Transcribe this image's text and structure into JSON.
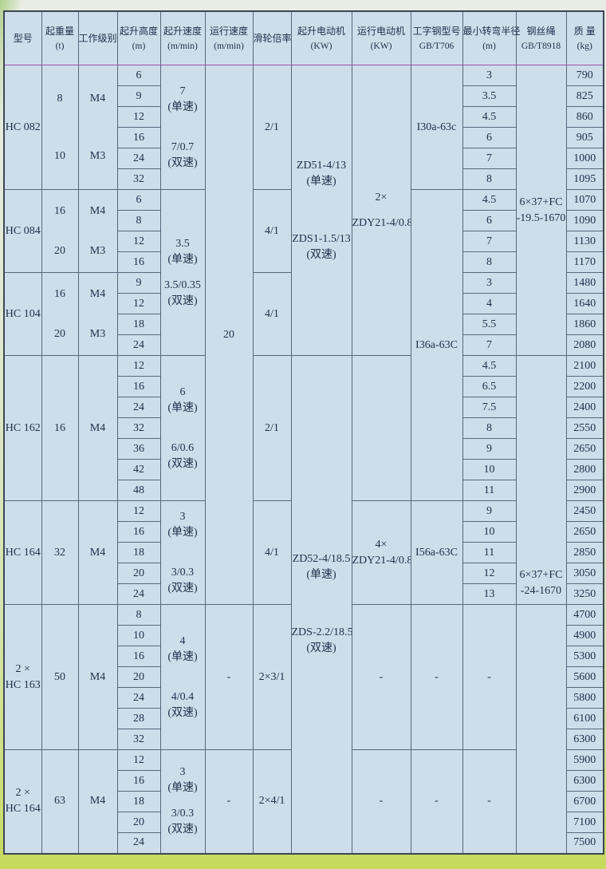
{
  "colors": {
    "table_bg": "#cddeea",
    "grid_line": "#5a667c",
    "ink": "#22304c",
    "frame_green": "#a6cc7a",
    "frame_yellow": "#c9dc66",
    "header_underline": "#9b4fae",
    "row_line_palette": [
      "#b05a9a",
      "#3fa3b5",
      "#8455b2",
      "#b5566d",
      "#3f7fb5",
      "#2f9f8a"
    ]
  },
  "header": {
    "columns": [
      {
        "label": "型号",
        "sub": ""
      },
      {
        "label": "起重量",
        "sub": "(t)"
      },
      {
        "label": "工作级别",
        "sub": ""
      },
      {
        "label": "起升高度",
        "sub": "(m)"
      },
      {
        "label": "起升速度",
        "sub": "(m/min)"
      },
      {
        "label": "运行速度",
        "sub": "(m/min)"
      },
      {
        "label": "滑轮倍率",
        "sub": ""
      },
      {
        "label": "起升电动机",
        "sub": "(KW)"
      },
      {
        "label": "运行电动机",
        "sub": "(KW)"
      },
      {
        "label": "工字钢型号",
        "sub": "GB/T706"
      },
      {
        "label": "最小转弯半径",
        "sub": "(m)"
      },
      {
        "label": "钢丝绳",
        "sub": "GB/T8918"
      },
      {
        "label": "质 量",
        "sub": "(kg)"
      }
    ]
  },
  "grid": {
    "rows": 38,
    "cells": [
      {
        "r": 1,
        "c": 1,
        "rs": 6,
        "t": [
          "HC 082"
        ]
      },
      {
        "r": 1,
        "c": 2,
        "rs": 6,
        "t": [
          "8",
          "",
          "10"
        ],
        "g": "gl"
      },
      {
        "r": 1,
        "c": 3,
        "rs": 6,
        "t": [
          "M4",
          "",
          "M3"
        ],
        "g": "gl"
      },
      {
        "r": 1,
        "c": 4,
        "t": [
          "6"
        ]
      },
      {
        "r": 1,
        "c": 5,
        "rs": 6,
        "t": [
          "7",
          "(单速)",
          "",
          "7/0.7",
          "(双速)"
        ],
        "g": "gm"
      },
      {
        "r": 1,
        "c": 6,
        "rs": 26,
        "t": [
          "20"
        ]
      },
      {
        "r": 1,
        "c": 7,
        "rs": 6,
        "t": [
          "2/1"
        ]
      },
      {
        "r": 1,
        "c": 8,
        "rs": 14,
        "t": [
          "ZD51-4/13",
          "(单速)",
          "",
          "ZDS1-1.5/13",
          "(双速)"
        ],
        "g": "gl"
      },
      {
        "r": 1,
        "c": 9,
        "rs": 14,
        "t": [
          "2×",
          "",
          "ZDY21-4/0.8"
        ],
        "g": "gs"
      },
      {
        "r": 1,
        "c": 10,
        "rs": 6,
        "t": [
          "I30a-63c"
        ]
      },
      {
        "r": 1,
        "c": 11,
        "t": [
          "3"
        ]
      },
      {
        "r": 1,
        "c": 12,
        "rs": 14,
        "t": [
          "6×37+FC",
          "-19.5-1670"
        ]
      },
      {
        "r": 1,
        "c": 13,
        "t": [
          "790"
        ]
      },
      {
        "r": 2,
        "c": 4,
        "t": [
          "9"
        ]
      },
      {
        "r": 2,
        "c": 11,
        "t": [
          "3.5"
        ]
      },
      {
        "r": 2,
        "c": 13,
        "t": [
          "825"
        ]
      },
      {
        "r": 3,
        "c": 4,
        "t": [
          "12"
        ]
      },
      {
        "r": 3,
        "c": 11,
        "t": [
          "4.5"
        ]
      },
      {
        "r": 3,
        "c": 13,
        "t": [
          "860"
        ]
      },
      {
        "r": 4,
        "c": 4,
        "t": [
          "16"
        ]
      },
      {
        "r": 4,
        "c": 11,
        "t": [
          "6"
        ]
      },
      {
        "r": 4,
        "c": 13,
        "t": [
          "905"
        ]
      },
      {
        "r": 5,
        "c": 4,
        "t": [
          "24"
        ]
      },
      {
        "r": 5,
        "c": 11,
        "t": [
          "7"
        ]
      },
      {
        "r": 5,
        "c": 13,
        "t": [
          "1000"
        ]
      },
      {
        "r": 6,
        "c": 4,
        "t": [
          "32"
        ]
      },
      {
        "r": 6,
        "c": 11,
        "t": [
          "8"
        ]
      },
      {
        "r": 6,
        "c": 13,
        "t": [
          "1095"
        ]
      },
      {
        "r": 7,
        "c": 1,
        "rs": 4,
        "t": [
          "HC 084"
        ]
      },
      {
        "r": 7,
        "c": 2,
        "rs": 4,
        "t": [
          "16",
          "",
          "20"
        ],
        "g": "gm"
      },
      {
        "r": 7,
        "c": 3,
        "rs": 4,
        "t": [
          "M4",
          "",
          "M3"
        ],
        "g": "gm"
      },
      {
        "r": 7,
        "c": 4,
        "t": [
          "6"
        ]
      },
      {
        "r": 7,
        "c": 5,
        "rs": 8,
        "t": [
          "3.5",
          "(单速)",
          "",
          "3.5/0.35",
          "(双速)"
        ],
        "g": "gs"
      },
      {
        "r": 7,
        "c": 7,
        "rs": 4,
        "t": [
          "4/1"
        ]
      },
      {
        "r": 7,
        "c": 10,
        "rs": 15,
        "t": [
          "I36a-63C"
        ]
      },
      {
        "r": 7,
        "c": 11,
        "t": [
          "4.5"
        ]
      },
      {
        "r": 7,
        "c": 13,
        "t": [
          "1070"
        ]
      },
      {
        "r": 8,
        "c": 4,
        "t": [
          "8"
        ]
      },
      {
        "r": 8,
        "c": 11,
        "t": [
          "6"
        ]
      },
      {
        "r": 8,
        "c": 13,
        "t": [
          "1090"
        ]
      },
      {
        "r": 9,
        "c": 4,
        "t": [
          "12"
        ]
      },
      {
        "r": 9,
        "c": 11,
        "t": [
          "7"
        ]
      },
      {
        "r": 9,
        "c": 13,
        "t": [
          "1130"
        ]
      },
      {
        "r": 10,
        "c": 4,
        "t": [
          "16"
        ]
      },
      {
        "r": 10,
        "c": 11,
        "t": [
          "8"
        ]
      },
      {
        "r": 10,
        "c": 13,
        "t": [
          "1170"
        ]
      },
      {
        "r": 11,
        "c": 1,
        "rs": 4,
        "t": [
          "HC 104"
        ]
      },
      {
        "r": 11,
        "c": 2,
        "rs": 4,
        "t": [
          "16",
          "",
          "20"
        ],
        "g": "gm"
      },
      {
        "r": 11,
        "c": 3,
        "rs": 4,
        "t": [
          "M4",
          "",
          "M3"
        ],
        "g": "gm"
      },
      {
        "r": 11,
        "c": 4,
        "t": [
          "9"
        ]
      },
      {
        "r": 11,
        "c": 7,
        "rs": 4,
        "t": [
          "4/1"
        ]
      },
      {
        "r": 11,
        "c": 11,
        "t": [
          "3"
        ]
      },
      {
        "r": 11,
        "c": 13,
        "t": [
          "1480"
        ]
      },
      {
        "r": 12,
        "c": 4,
        "t": [
          "12"
        ]
      },
      {
        "r": 12,
        "c": 11,
        "t": [
          "4"
        ]
      },
      {
        "r": 12,
        "c": 13,
        "t": [
          "1640"
        ]
      },
      {
        "r": 13,
        "c": 4,
        "t": [
          "18"
        ]
      },
      {
        "r": 13,
        "c": 11,
        "t": [
          "5.5"
        ]
      },
      {
        "r": 13,
        "c": 13,
        "t": [
          "1860"
        ]
      },
      {
        "r": 14,
        "c": 4,
        "t": [
          "24"
        ]
      },
      {
        "r": 14,
        "c": 11,
        "t": [
          "7"
        ]
      },
      {
        "r": 14,
        "c": 13,
        "t": [
          "2080"
        ]
      },
      {
        "r": 15,
        "c": 1,
        "rs": 7,
        "t": [
          "HC 162"
        ]
      },
      {
        "r": 15,
        "c": 2,
        "rs": 7,
        "t": [
          "16"
        ]
      },
      {
        "r": 15,
        "c": 3,
        "rs": 7,
        "t": [
          "M4"
        ]
      },
      {
        "r": 15,
        "c": 4,
        "t": [
          "12"
        ]
      },
      {
        "r": 15,
        "c": 5,
        "rs": 7,
        "t": [
          "6",
          "(单速)",
          "",
          "6/0.6",
          "(双速)"
        ],
        "g": "gm"
      },
      {
        "r": 15,
        "c": 7,
        "rs": 7,
        "t": [
          "2/1"
        ]
      },
      {
        "r": 15,
        "c": 8,
        "rs": 24,
        "t": [
          "ZD52-4/18.5",
          "(单速)",
          "",
          "ZDS-2.2/18.5",
          "(双速)"
        ],
        "g": "gl"
      },
      {
        "r": 15,
        "c": 9,
        "rs": 7,
        "t": [
          ""
        ]
      },
      {
        "r": 15,
        "c": 11,
        "t": [
          "4.5"
        ]
      },
      {
        "r": 15,
        "c": 12,
        "rs": 12,
        "t": [
          "6×37+FC",
          "-24-1670"
        ],
        "g": "vb"
      },
      {
        "r": 15,
        "c": 13,
        "t": [
          "2100"
        ]
      },
      {
        "r": 16,
        "c": 4,
        "t": [
          "16"
        ]
      },
      {
        "r": 16,
        "c": 11,
        "t": [
          "6.5"
        ]
      },
      {
        "r": 16,
        "c": 13,
        "t": [
          "2200"
        ]
      },
      {
        "r": 17,
        "c": 4,
        "t": [
          "24"
        ]
      },
      {
        "r": 17,
        "c": 11,
        "t": [
          "7.5"
        ]
      },
      {
        "r": 17,
        "c": 13,
        "t": [
          "2400"
        ]
      },
      {
        "r": 18,
        "c": 4,
        "t": [
          "32"
        ]
      },
      {
        "r": 18,
        "c": 11,
        "t": [
          "8"
        ]
      },
      {
        "r": 18,
        "c": 13,
        "t": [
          "2550"
        ]
      },
      {
        "r": 19,
        "c": 4,
        "t": [
          "36"
        ]
      },
      {
        "r": 19,
        "c": 11,
        "t": [
          "9"
        ]
      },
      {
        "r": 19,
        "c": 13,
        "t": [
          "2650"
        ]
      },
      {
        "r": 20,
        "c": 4,
        "t": [
          "42"
        ]
      },
      {
        "r": 20,
        "c": 11,
        "t": [
          "10"
        ]
      },
      {
        "r": 20,
        "c": 13,
        "t": [
          "2800"
        ]
      },
      {
        "r": 21,
        "c": 4,
        "t": [
          "48"
        ]
      },
      {
        "r": 21,
        "c": 11,
        "t": [
          "11"
        ]
      },
      {
        "r": 21,
        "c": 13,
        "t": [
          "2900"
        ]
      },
      {
        "r": 22,
        "c": 1,
        "rs": 5,
        "t": [
          "HC 164"
        ]
      },
      {
        "r": 22,
        "c": 2,
        "rs": 5,
        "t": [
          "32"
        ]
      },
      {
        "r": 22,
        "c": 3,
        "rs": 5,
        "t": [
          "M4"
        ]
      },
      {
        "r": 22,
        "c": 4,
        "t": [
          "12"
        ]
      },
      {
        "r": 22,
        "c": 5,
        "rs": 5,
        "t": [
          "3",
          "(单速)",
          "",
          "3/0.3",
          "(双速)"
        ],
        "g": "gm"
      },
      {
        "r": 22,
        "c": 7,
        "rs": 5,
        "t": [
          "4/1"
        ]
      },
      {
        "r": 22,
        "c": 9,
        "rs": 5,
        "t": [
          "4×",
          "ZDY21-4/0.8"
        ]
      },
      {
        "r": 22,
        "c": 10,
        "rs": 5,
        "t": [
          "I56a-63C"
        ]
      },
      {
        "r": 22,
        "c": 11,
        "t": [
          "9"
        ]
      },
      {
        "r": 22,
        "c": 13,
        "t": [
          "2450"
        ]
      },
      {
        "r": 23,
        "c": 4,
        "t": [
          "16"
        ]
      },
      {
        "r": 23,
        "c": 11,
        "t": [
          "10"
        ]
      },
      {
        "r": 23,
        "c": 13,
        "t": [
          "2650"
        ]
      },
      {
        "r": 24,
        "c": 4,
        "t": [
          "18"
        ]
      },
      {
        "r": 24,
        "c": 11,
        "t": [
          "11"
        ]
      },
      {
        "r": 24,
        "c": 13,
        "t": [
          "2850"
        ]
      },
      {
        "r": 25,
        "c": 4,
        "t": [
          "20"
        ]
      },
      {
        "r": 25,
        "c": 11,
        "t": [
          "12"
        ]
      },
      {
        "r": 25,
        "c": 13,
        "t": [
          "3050"
        ]
      },
      {
        "r": 26,
        "c": 4,
        "t": [
          "24"
        ]
      },
      {
        "r": 26,
        "c": 11,
        "t": [
          "13"
        ]
      },
      {
        "r": 26,
        "c": 13,
        "t": [
          "3250"
        ]
      },
      {
        "r": 27,
        "c": 1,
        "rs": 7,
        "t": [
          "2 ×",
          "HC 163"
        ]
      },
      {
        "r": 27,
        "c": 2,
        "rs": 7,
        "t": [
          "50"
        ]
      },
      {
        "r": 27,
        "c": 3,
        "rs": 7,
        "t": [
          "M4"
        ]
      },
      {
        "r": 27,
        "c": 4,
        "t": [
          "8"
        ]
      },
      {
        "r": 27,
        "c": 5,
        "rs": 7,
        "t": [
          "4",
          "(单速)",
          "",
          "4/0.4",
          "(双速)"
        ],
        "g": "gm"
      },
      {
        "r": 27,
        "c": 6,
        "rs": 7,
        "t": [
          "-"
        ]
      },
      {
        "r": 27,
        "c": 7,
        "rs": 7,
        "t": [
          "2×3/1"
        ]
      },
      {
        "r": 27,
        "c": 9,
        "rs": 7,
        "t": [
          "-"
        ]
      },
      {
        "r": 27,
        "c": 10,
        "rs": 7,
        "t": [
          "-"
        ]
      },
      {
        "r": 27,
        "c": 11,
        "rs": 7,
        "t": [
          "-"
        ]
      },
      {
        "r": 27,
        "c": 12,
        "rs": 12,
        "t": [
          ""
        ]
      },
      {
        "r": 27,
        "c": 13,
        "t": [
          "4700"
        ]
      },
      {
        "r": 28,
        "c": 4,
        "t": [
          "10"
        ]
      },
      {
        "r": 28,
        "c": 13,
        "t": [
          "4900"
        ]
      },
      {
        "r": 29,
        "c": 4,
        "t": [
          "16"
        ]
      },
      {
        "r": 29,
        "c": 13,
        "t": [
          "5300"
        ]
      },
      {
        "r": 30,
        "c": 4,
        "t": [
          "20"
        ]
      },
      {
        "r": 30,
        "c": 13,
        "t": [
          "5600"
        ]
      },
      {
        "r": 31,
        "c": 4,
        "t": [
          "24"
        ]
      },
      {
        "r": 31,
        "c": 13,
        "t": [
          "5800"
        ]
      },
      {
        "r": 32,
        "c": 4,
        "t": [
          "28"
        ]
      },
      {
        "r": 32,
        "c": 13,
        "t": [
          "6100"
        ]
      },
      {
        "r": 33,
        "c": 4,
        "t": [
          "32"
        ]
      },
      {
        "r": 33,
        "c": 13,
        "t": [
          "6300"
        ]
      },
      {
        "r": 34,
        "c": 1,
        "rs": 5,
        "t": [
          "2 ×",
          "HC 164"
        ]
      },
      {
        "r": 34,
        "c": 2,
        "rs": 5,
        "t": [
          "63"
        ]
      },
      {
        "r": 34,
        "c": 3,
        "rs": 5,
        "t": [
          "M4"
        ]
      },
      {
        "r": 34,
        "c": 4,
        "t": [
          "12"
        ]
      },
      {
        "r": 34,
        "c": 5,
        "rs": 5,
        "t": [
          "3",
          "(单速)",
          "",
          "3/0.3",
          "(双速)"
        ],
        "g": "gs"
      },
      {
        "r": 34,
        "c": 6,
        "rs": 5,
        "t": [
          "-"
        ]
      },
      {
        "r": 34,
        "c": 7,
        "rs": 5,
        "t": [
          "2×4/1"
        ]
      },
      {
        "r": 34,
        "c": 9,
        "rs": 5,
        "t": [
          "-"
        ]
      },
      {
        "r": 34,
        "c": 10,
        "rs": 5,
        "t": [
          "-"
        ]
      },
      {
        "r": 34,
        "c": 11,
        "rs": 5,
        "t": [
          "-"
        ]
      },
      {
        "r": 34,
        "c": 13,
        "t": [
          "5900"
        ]
      },
      {
        "r": 35,
        "c": 4,
        "t": [
          "16"
        ]
      },
      {
        "r": 35,
        "c": 13,
        "t": [
          "6300"
        ]
      },
      {
        "r": 36,
        "c": 4,
        "t": [
          "18"
        ]
      },
      {
        "r": 36,
        "c": 13,
        "t": [
          "6700"
        ]
      },
      {
        "r": 37,
        "c": 4,
        "t": [
          "20"
        ]
      },
      {
        "r": 37,
        "c": 13,
        "t": [
          "7100"
        ]
      },
      {
        "r": 38,
        "c": 4,
        "t": [
          "24"
        ]
      },
      {
        "r": 38,
        "c": 13,
        "t": [
          "7500"
        ]
      }
    ]
  }
}
